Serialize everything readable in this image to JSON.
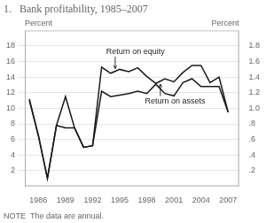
{
  "chart_data": {
    "type": "line",
    "title": "1.   Bank profitability, 1985–2007",
    "note": "NOTE  The data are annual.",
    "ylabel": "Percent",
    "y2label": "Percent",
    "x": [
      1985,
      1986,
      1987,
      1988,
      1989,
      1990,
      1991,
      1992,
      1993,
      1994,
      1995,
      1996,
      1997,
      1998,
      1999,
      2000,
      2001,
      2002,
      2003,
      2004,
      2005,
      2006,
      2007
    ],
    "series": [
      {
        "color": "#1a1a1a",
        "values": [
          11.2,
          6.5,
          1.0,
          7.8,
          11.5,
          7.5,
          5.0,
          5.2,
          15.3,
          14.5,
          15.0,
          14.7,
          15.2,
          14.1,
          13.2,
          13.8,
          13.4,
          14.6,
          15.5,
          15.5,
          13.3,
          14.0,
          9.5
        ]
      },
      {
        "color": "#1a1a1a",
        "axis": "y2",
        "values": [
          1.1,
          0.65,
          0.1,
          0.78,
          0.75,
          0.75,
          0.5,
          0.52,
          1.22,
          1.15,
          1.17,
          1.19,
          1.22,
          1.19,
          1.31,
          1.19,
          1.16,
          1.33,
          1.38,
          1.28,
          1.28,
          1.28,
          0.95
        ]
      }
    ],
    "annotations": [
      {
        "text": "Return on equity",
        "xy": [
          1994.5,
          15.1
        ],
        "xytext": [
          1993.5,
          17.3
        ],
        "axis": "y"
      },
      {
        "text": "Return on assets",
        "xy": [
          1999.5,
          1.31
        ],
        "xytext": [
          1997.8,
          1.09
        ],
        "axis": "y2"
      }
    ],
    "xlim": [
      1984.5,
      2008.2
    ],
    "xticks": [
      1986,
      1989,
      1992,
      1995,
      1998,
      2001,
      2004,
      2007
    ],
    "ylim": [
      0,
      20
    ],
    "yticks": [
      2,
      4,
      6,
      8,
      10,
      12,
      14,
      16,
      18
    ],
    "y2lim": [
      0,
      2.0
    ],
    "y2ticks": [
      {
        "value": 0.2,
        "label": ".2"
      },
      {
        "value": 0.4,
        "label": ".4"
      },
      {
        "value": 0.6,
        "label": ".6"
      },
      {
        "value": 0.8,
        "label": ".8"
      },
      {
        "value": 1.0,
        "label": "1.0"
      },
      1.2,
      1.4,
      1.6,
      1.8
    ],
    "grid": "y"
  }
}
